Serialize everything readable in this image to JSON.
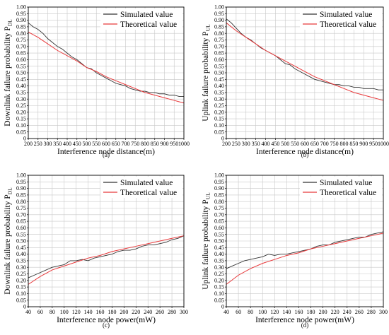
{
  "chart_data": [
    {
      "type": "line",
      "panel_label": "(a)",
      "xlabel": "Interference node distance(m)",
      "ylabel_main": "Downlink failure probability P",
      "ylabel_sub": "DL",
      "xlim": [
        200,
        1000
      ],
      "ylim": [
        0,
        1
      ],
      "xticks": [
        "200",
        "250",
        "300",
        "350",
        "400",
        "450",
        "500",
        "550",
        "600",
        "650",
        "700",
        "750",
        "800",
        "850",
        "900",
        "950",
        "1000"
      ],
      "yticks": [
        "0",
        "0.05",
        "0.10",
        "0.15",
        "0.20",
        "0.25",
        "0.30",
        "0.35",
        "0.40",
        "0.45",
        "0.50",
        "0.55",
        "0.60",
        "0.65",
        "0.70",
        "0.75",
        "0.80",
        "0.85",
        "0.90",
        "0.95",
        "1.00"
      ],
      "grid": true,
      "legend_position": "top-right",
      "series": [
        {
          "name": "Simulated value",
          "color": "#333333",
          "x": [
            200,
            225,
            250,
            275,
            300,
            325,
            350,
            375,
            400,
            425,
            450,
            475,
            500,
            525,
            550,
            575,
            600,
            625,
            650,
            675,
            700,
            725,
            750,
            775,
            800,
            825,
            850,
            875,
            900,
            925,
            950,
            975,
            1000
          ],
          "y": [
            0.88,
            0.85,
            0.83,
            0.8,
            0.76,
            0.73,
            0.7,
            0.68,
            0.65,
            0.62,
            0.6,
            0.57,
            0.54,
            0.53,
            0.5,
            0.48,
            0.46,
            0.44,
            0.42,
            0.41,
            0.4,
            0.38,
            0.37,
            0.36,
            0.36,
            0.35,
            0.35,
            0.34,
            0.34,
            0.33,
            0.33,
            0.32,
            0.32
          ]
        },
        {
          "name": "Theoretical value",
          "color": "#e8393b",
          "x": [
            200,
            250,
            300,
            350,
            400,
            450,
            500,
            550,
            600,
            650,
            700,
            750,
            800,
            850,
            900,
            950,
            1000
          ],
          "y": [
            0.81,
            0.77,
            0.72,
            0.67,
            0.63,
            0.59,
            0.54,
            0.51,
            0.47,
            0.44,
            0.41,
            0.38,
            0.35,
            0.33,
            0.31,
            0.29,
            0.27
          ]
        }
      ]
    },
    {
      "type": "line",
      "panel_label": "(b)",
      "xlabel": "Interference node distance(m)",
      "ylabel_main": "Uplink failure probability P",
      "ylabel_sub": "UL",
      "xlim": [
        200,
        1000
      ],
      "ylim": [
        0,
        1
      ],
      "xticks": [
        "200",
        "250",
        "300",
        "350",
        "400",
        "450",
        "500",
        "550",
        "600",
        "650",
        "700",
        "750",
        "800",
        "850",
        "900",
        "950",
        "1000"
      ],
      "yticks": [
        "0",
        "0.05",
        "0.10",
        "0.15",
        "0.20",
        "0.25",
        "0.30",
        "0.35",
        "0.40",
        "0.45",
        "0.50",
        "0.55",
        "0.60",
        "0.65",
        "0.70",
        "0.75",
        "0.80",
        "0.85",
        "0.90",
        "0.95",
        "1.00"
      ],
      "grid": true,
      "legend_position": "top-right",
      "series": [
        {
          "name": "Simulated value",
          "color": "#333333",
          "x": [
            200,
            225,
            250,
            275,
            300,
            325,
            350,
            375,
            400,
            425,
            450,
            475,
            500,
            525,
            550,
            575,
            600,
            625,
            650,
            675,
            700,
            725,
            750,
            775,
            800,
            825,
            850,
            875,
            900,
            925,
            950,
            975,
            1000
          ],
          "y": [
            0.91,
            0.88,
            0.84,
            0.8,
            0.77,
            0.75,
            0.72,
            0.69,
            0.67,
            0.65,
            0.63,
            0.6,
            0.57,
            0.56,
            0.53,
            0.51,
            0.49,
            0.47,
            0.45,
            0.44,
            0.43,
            0.42,
            0.41,
            0.41,
            0.4,
            0.4,
            0.39,
            0.39,
            0.38,
            0.38,
            0.38,
            0.37,
            0.37
          ]
        },
        {
          "name": "Theoretical value",
          "color": "#e8393b",
          "x": [
            200,
            250,
            300,
            350,
            400,
            450,
            500,
            550,
            600,
            650,
            700,
            750,
            800,
            850,
            900,
            950,
            1000
          ],
          "y": [
            0.88,
            0.82,
            0.77,
            0.72,
            0.67,
            0.63,
            0.59,
            0.55,
            0.51,
            0.47,
            0.44,
            0.41,
            0.38,
            0.35,
            0.33,
            0.31,
            0.29
          ]
        }
      ]
    },
    {
      "type": "line",
      "panel_label": "(c)",
      "xlabel": "Interference node power(mW)",
      "ylabel_main": "Downlink failure probability P",
      "ylabel_sub": "DL",
      "xlim": [
        40,
        300
      ],
      "ylim": [
        0,
        1
      ],
      "xticks": [
        "40",
        "60",
        "80",
        "100",
        "120",
        "140",
        "160",
        "180",
        "200",
        "220",
        "240",
        "260",
        "280",
        "300"
      ],
      "yticks": [
        "0",
        "0.05",
        "0.10",
        "0.15",
        "0.20",
        "0.25",
        "0.30",
        "0.35",
        "0.40",
        "0.45",
        "0.50",
        "0.55",
        "0.60",
        "0.65",
        "0.70",
        "0.75",
        "0.80",
        "0.85",
        "0.90",
        "0.95",
        "1.00"
      ],
      "grid": true,
      "legend_position": "top-right",
      "series": [
        {
          "name": "Simulated value",
          "color": "#333333",
          "x": [
            40,
            50,
            60,
            70,
            80,
            90,
            100,
            110,
            120,
            130,
            140,
            150,
            160,
            170,
            180,
            190,
            200,
            210,
            220,
            230,
            240,
            250,
            260,
            270,
            280,
            290,
            300
          ],
          "y": [
            0.22,
            0.24,
            0.26,
            0.28,
            0.3,
            0.31,
            0.32,
            0.35,
            0.35,
            0.36,
            0.35,
            0.37,
            0.38,
            0.39,
            0.4,
            0.42,
            0.43,
            0.43,
            0.44,
            0.46,
            0.47,
            0.47,
            0.48,
            0.49,
            0.51,
            0.52,
            0.54
          ]
        },
        {
          "name": "Theoretical value",
          "color": "#e8393b",
          "x": [
            40,
            60,
            80,
            100,
            120,
            140,
            160,
            180,
            200,
            220,
            240,
            260,
            280,
            300
          ],
          "y": [
            0.17,
            0.23,
            0.28,
            0.31,
            0.34,
            0.37,
            0.39,
            0.42,
            0.44,
            0.46,
            0.48,
            0.5,
            0.52,
            0.54
          ]
        }
      ]
    },
    {
      "type": "line",
      "panel_label": "(d)",
      "xlabel": "Interference node power(mW)",
      "ylabel_main": "Uplink failure probability P",
      "ylabel_sub": "UL",
      "xlim": [
        40,
        300
      ],
      "ylim": [
        0,
        1
      ],
      "xticks": [
        "40",
        "60",
        "80",
        "100",
        "120",
        "140",
        "160",
        "180",
        "200",
        "220",
        "240",
        "260",
        "280",
        "300"
      ],
      "yticks": [
        "0",
        "0.05",
        "0.10",
        "0.15",
        "0.20",
        "0.25",
        "0.30",
        "0.35",
        "0.40",
        "0.45",
        "0.50",
        "0.55",
        "0.60",
        "0.65",
        "0.70",
        "0.75",
        "0.80",
        "0.85",
        "0.90",
        "0.95",
        "1.00"
      ],
      "grid": true,
      "legend_position": "top-right",
      "series": [
        {
          "name": "Simulated value",
          "color": "#333333",
          "x": [
            40,
            50,
            60,
            70,
            80,
            90,
            100,
            110,
            120,
            130,
            140,
            150,
            160,
            170,
            180,
            190,
            200,
            210,
            220,
            230,
            240,
            250,
            260,
            270,
            280,
            290,
            300
          ],
          "y": [
            0.29,
            0.31,
            0.33,
            0.35,
            0.36,
            0.37,
            0.38,
            0.4,
            0.39,
            0.4,
            0.4,
            0.41,
            0.42,
            0.43,
            0.44,
            0.46,
            0.47,
            0.47,
            0.49,
            0.5,
            0.51,
            0.52,
            0.53,
            0.53,
            0.55,
            0.56,
            0.57
          ]
        },
        {
          "name": "Theoretical value",
          "color": "#e8393b",
          "x": [
            40,
            60,
            80,
            100,
            120,
            140,
            160,
            180,
            200,
            220,
            240,
            260,
            280,
            300
          ],
          "y": [
            0.17,
            0.24,
            0.29,
            0.33,
            0.36,
            0.39,
            0.41,
            0.44,
            0.46,
            0.48,
            0.5,
            0.52,
            0.54,
            0.56
          ]
        }
      ]
    }
  ]
}
